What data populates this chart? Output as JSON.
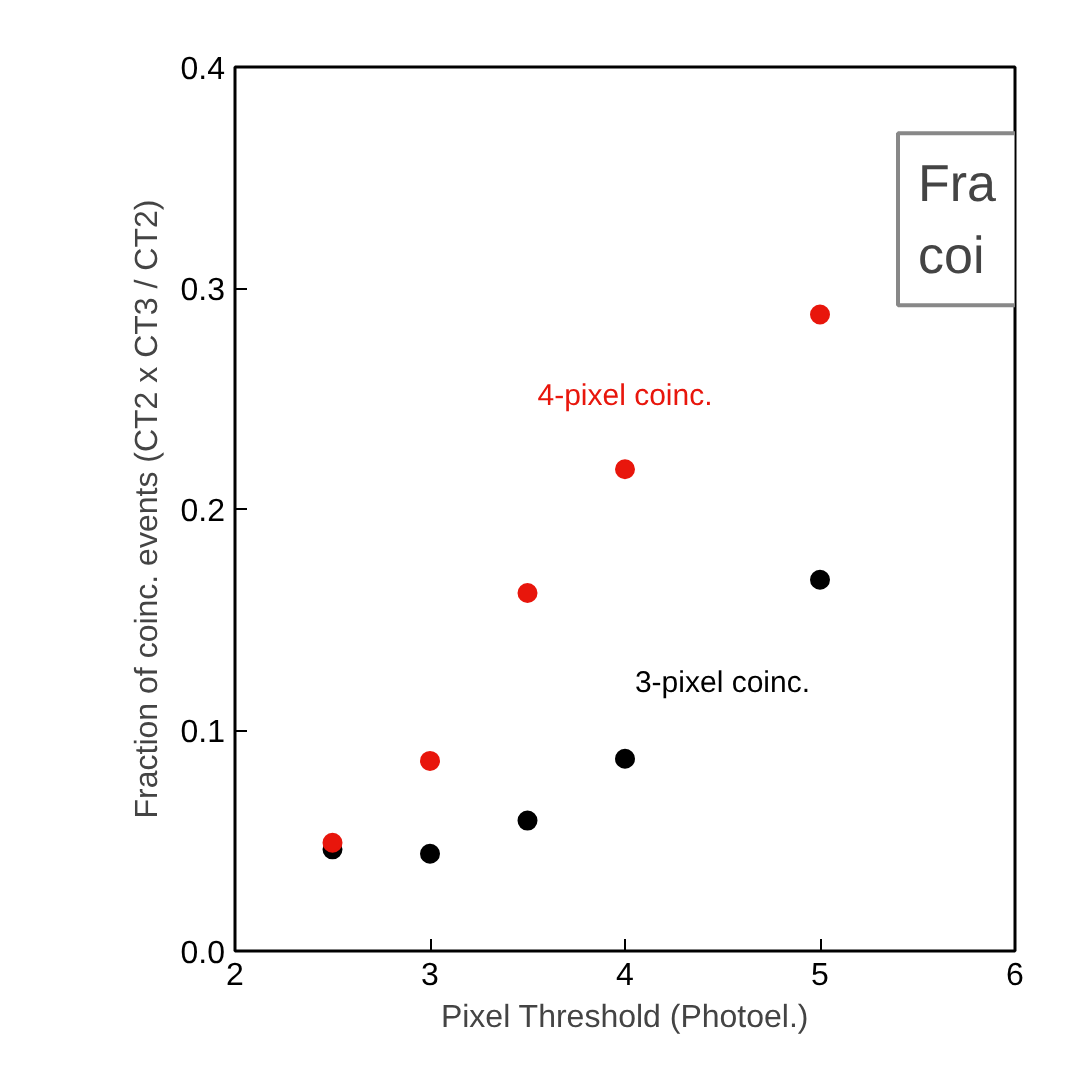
{
  "chart_data": {
    "type": "scatter",
    "xlabel": "Pixel Threshold (Photoel.)",
    "ylabel": "Fraction of coinc. events (CT2 x CT3 / CT2)",
    "x": [
      2.5,
      3,
      3.5,
      4,
      5
    ],
    "series": [
      {
        "name": "4-pixel coinc.",
        "color": "#e8160c",
        "values": [
          0.049,
          0.086,
          0.162,
          0.218,
          0.288
        ]
      },
      {
        "name": "3-pixel coinc.",
        "color": "#000000",
        "values": [
          0.046,
          0.044,
          0.059,
          0.087,
          0.168
        ]
      }
    ],
    "xlim": [
      2,
      6
    ],
    "xticks": [
      2,
      3,
      4,
      5,
      6
    ],
    "ylim": [
      0,
      0.4
    ],
    "yticks": [
      {
        "value": 0,
        "label": "0.0"
      },
      0.1,
      0.2,
      0.3,
      0.4
    ],
    "grid": false,
    "marker": "circle",
    "annotations": [
      "Fra\ncoi"
    ]
  }
}
